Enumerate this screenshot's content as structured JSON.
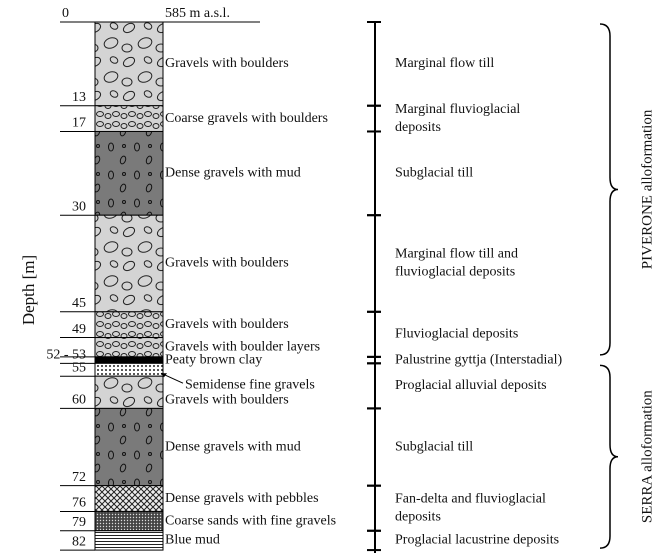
{
  "surface_label": "585 m a.s.l.",
  "axis_label": "Depth [m]",
  "top_depth": {
    "value": 0,
    "label": "0"
  },
  "layers": [
    {
      "bottom": 13,
      "depth_label": "13",
      "lithology": "Gravels with boulders",
      "pattern": "boulders"
    },
    {
      "bottom": 17,
      "depth_label": "17",
      "lithology": "Coarse gravels with boulders",
      "pattern": "boulders-fine"
    },
    {
      "bottom": 30,
      "depth_label": "30",
      "lithology": "Dense gravels with mud",
      "pattern": "dense"
    },
    {
      "bottom": 45,
      "depth_label": "45",
      "lithology": "Gravels with boulders",
      "pattern": "boulders"
    },
    {
      "bottom": 49,
      "depth_label": "49",
      "lithology": "Gravels with boulders",
      "pattern": "boulders-fine"
    },
    {
      "bottom": 52,
      "depth_label": null,
      "lithology": "Gravels with boulder layers",
      "pattern": "boulders-fine"
    },
    {
      "bottom": 53,
      "depth_label": "52 - 53",
      "lithology": "Peaty brown clay",
      "pattern": "black"
    },
    {
      "bottom": 55,
      "depth_label": "55",
      "lithology": "Semidense fine gravels",
      "pattern": "dots"
    },
    {
      "bottom": 60,
      "depth_label": "60",
      "lithology": "Gravels with boulders",
      "pattern": "boulders"
    },
    {
      "bottom": 72,
      "depth_label": "72",
      "lithology": "Dense gravels with mud",
      "pattern": "dense"
    },
    {
      "bottom": 76,
      "depth_label": "76",
      "lithology": "Dense gravels with pebbles",
      "pattern": "cross"
    },
    {
      "bottom": 79,
      "depth_label": "79",
      "lithology": "Coarse sands with fine gravels",
      "pattern": "densedots"
    },
    {
      "bottom": 82,
      "depth_label": "82",
      "lithology": "Blue mud",
      "pattern": "lines"
    }
  ],
  "units": [
    {
      "top": 0,
      "bottom": 13,
      "lines": [
        "Marginal flow till"
      ]
    },
    {
      "top": 13,
      "bottom": 17,
      "lines": [
        "Marginal fluvioglacial",
        "deposits"
      ]
    },
    {
      "top": 17,
      "bottom": 30,
      "lines": [
        "Subglacial till"
      ]
    },
    {
      "top": 30,
      "bottom": 45,
      "lines": [
        "Marginal flow till and",
        "fluvioglacial deposits"
      ]
    },
    {
      "top": 45,
      "bottom": 52,
      "lines": [
        "Fluvioglacial deposits"
      ]
    },
    {
      "top": 52,
      "bottom": 53,
      "lines": [
        "Palustrine gyttja (Interstadial)"
      ]
    },
    {
      "top": 53,
      "bottom": 60,
      "lines": [
        "Proglacial alluvial deposits"
      ]
    },
    {
      "top": 60,
      "bottom": 72,
      "lines": [
        "Subglacial till"
      ]
    },
    {
      "top": 72,
      "bottom": 79,
      "lines": [
        "Fan-delta and fluvioglacial",
        "deposits"
      ]
    },
    {
      "top": 79,
      "bottom": 82,
      "lines": [
        "Proglacial lacustrine deposits"
      ]
    }
  ],
  "alloformations": [
    {
      "top": 0,
      "bottom": 52,
      "name": "PIVERONE alloformation"
    },
    {
      "top": 53,
      "bottom": 82,
      "name": "SERRA alloformation"
    }
  ]
}
